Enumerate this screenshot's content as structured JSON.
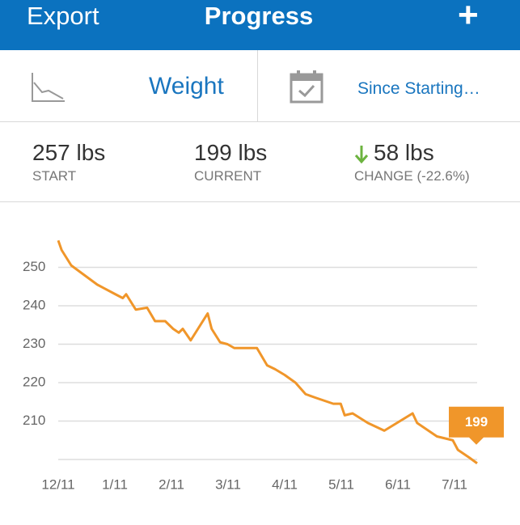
{
  "header": {
    "left": "Export",
    "title": "Progress",
    "right": "+"
  },
  "selectors": {
    "metric": "Weight",
    "range": "Since Starting…"
  },
  "stats": [
    {
      "value": "257 lbs",
      "label": "START"
    },
    {
      "value": "199 lbs",
      "label": "CURRENT"
    },
    {
      "value": "58 lbs",
      "label": "CHANGE (-22.6%)"
    }
  ],
  "chart_data": {
    "type": "line",
    "color": "#f0962a",
    "grid": true,
    "x": [
      0,
      0.06,
      0.23,
      0.69,
      1.01,
      1.14,
      1.2,
      1.37,
      1.57,
      1.71,
      1.89,
      2.03,
      2.13,
      2.2,
      2.34,
      2.64,
      2.71,
      2.86,
      2.99,
      3.11,
      3.26,
      3.51,
      3.69,
      3.83,
      4.0,
      4.19,
      4.37,
      4.56,
      4.86,
      4.99,
      5.06,
      5.2,
      5.47,
      5.76,
      6.26,
      6.34,
      6.69,
      6.97,
      7.06,
      7.26,
      7.4
    ],
    "values": [
      257,
      254.5,
      250.5,
      245.5,
      243,
      242,
      243,
      239,
      239.5,
      236,
      236,
      234,
      233,
      234,
      231,
      238,
      234,
      230.5,
      230,
      229,
      229,
      229,
      224.5,
      223.5,
      222,
      220,
      217,
      216,
      214.5,
      214.5,
      211.5,
      212,
      209.5,
      207.5,
      212,
      209.5,
      206,
      205,
      202.5,
      200.5,
      199
    ],
    "xlim": [
      0,
      7.4
    ],
    "xticks": [
      {
        "value": 0,
        "label": "12/11"
      },
      {
        "value": 1,
        "label": "1/11"
      },
      {
        "value": 2,
        "label": "2/11"
      },
      {
        "value": 3,
        "label": "3/11"
      },
      {
        "value": 4,
        "label": "4/11"
      },
      {
        "value": 5,
        "label": "5/11"
      },
      {
        "value": 6,
        "label": "6/11"
      },
      {
        "value": 7,
        "label": "7/11"
      }
    ],
    "ylim": [
      198,
      260
    ],
    "yticks": [
      210,
      220,
      230,
      240,
      250
    ]
  }
}
